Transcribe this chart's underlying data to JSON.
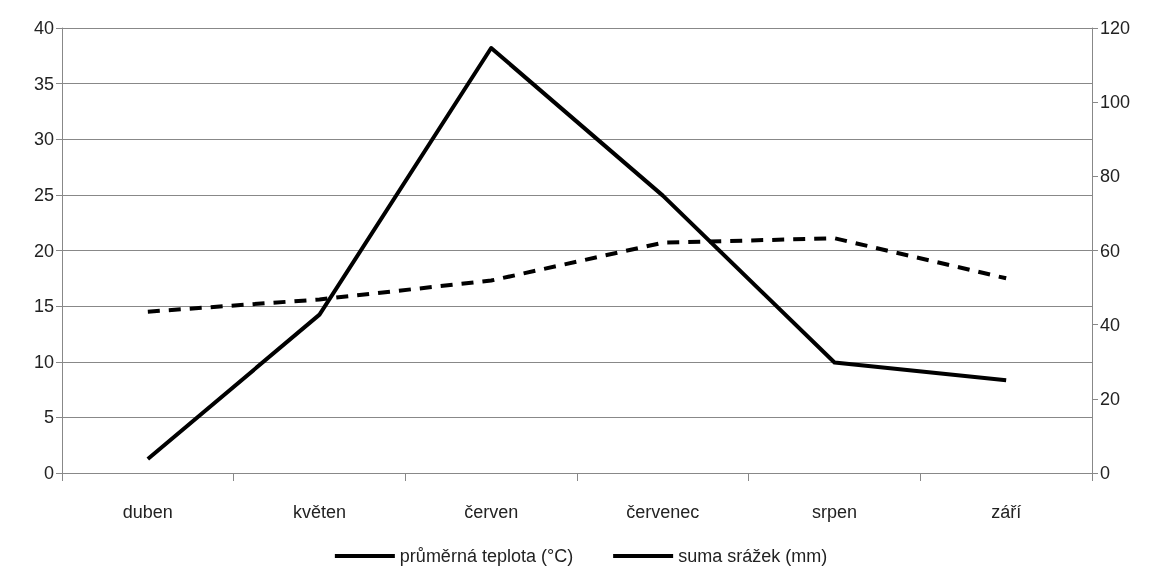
{
  "chart_data": {
    "type": "line",
    "categories": [
      "duben",
      "květen",
      "červen",
      "červenec",
      "srpen",
      "září"
    ],
    "series": [
      {
        "name": "průměrná teplota (°C)",
        "color": "#000000",
        "line_style": "dashed",
        "values": [
          14.5,
          15.6,
          17.3,
          20.7,
          21.1,
          17.5
        ]
      },
      {
        "name": "suma srážek (mm)",
        "color": "#000000",
        "line_style": "solid",
        "axis": "y2",
        "values": [
          3.8,
          42.7,
          114.6,
          74.8,
          29.8,
          25.0
        ]
      }
    ],
    "ylim": [
      0,
      40
    ],
    "yticks": [
      0,
      5,
      10,
      15,
      20,
      25,
      30,
      35,
      40
    ],
    "y2lim": [
      0,
      120
    ],
    "y2ticks": [
      0,
      20,
      40,
      60,
      80,
      100,
      120
    ],
    "grid": "y",
    "legend": "bottom",
    "marker": "none"
  }
}
